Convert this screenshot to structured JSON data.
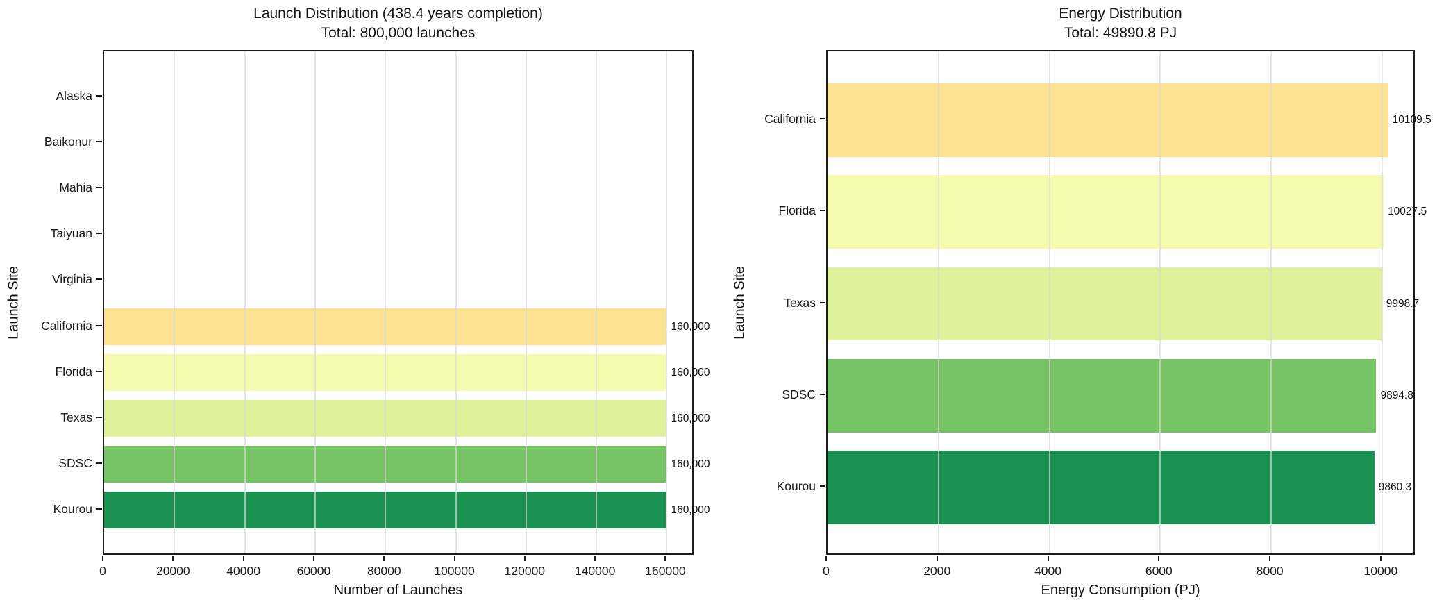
{
  "chart_data": [
    {
      "type": "bar",
      "orientation": "horizontal",
      "title_line1": "Launch Distribution (438.4 years completion)",
      "title_line2": "Total: 800,000 launches",
      "xlabel": "Number of Launches",
      "ylabel": "Launch Site",
      "categories": [
        "Alaska",
        "Baikonur",
        "Mahia",
        "Taiyuan",
        "Virginia",
        "California",
        "Florida",
        "Texas",
        "SDSC",
        "Kourou"
      ],
      "values": [
        0,
        0,
        0,
        0,
        0,
        160000,
        160000,
        160000,
        160000,
        160000
      ],
      "value_labels": [
        null,
        null,
        null,
        null,
        null,
        "160,000",
        "160,000",
        "160,000",
        "160,000",
        "160,000"
      ],
      "bar_colors": [
        null,
        null,
        null,
        null,
        null,
        "#FDE391",
        "#F5FAAF",
        "#E0F19B",
        "#77C567",
        "#1A9150"
      ],
      "xlim": [
        0,
        168000
      ],
      "xticks": [
        0,
        20000,
        40000,
        60000,
        80000,
        100000,
        120000,
        140000,
        160000
      ],
      "xtick_labels": [
        "0",
        "20000",
        "40000",
        "60000",
        "80000",
        "100000",
        "120000",
        "140000",
        "160000"
      ],
      "grid": "vertical-light-gray",
      "legend": "none"
    },
    {
      "type": "bar",
      "orientation": "horizontal",
      "title_line1": "Energy Distribution",
      "title_line2": "Total: 49890.8 PJ",
      "xlabel": "Energy Consumption (PJ)",
      "ylabel": "Launch Site",
      "categories": [
        "California",
        "Florida",
        "Texas",
        "SDSC",
        "Kourou"
      ],
      "values": [
        10109.5,
        10027.5,
        9998.7,
        9894.8,
        9860.3
      ],
      "value_labels": [
        "10109.5",
        "10027.5",
        "9998.7",
        "9894.8",
        "9860.3"
      ],
      "bar_colors": [
        "#FDE391",
        "#F5FAAF",
        "#E0F19B",
        "#77C567",
        "#1A9150"
      ],
      "xlim": [
        0,
        10615
      ],
      "xticks": [
        0,
        2000,
        4000,
        6000,
        8000,
        10000
      ],
      "xtick_labels": [
        "0",
        "2000",
        "4000",
        "6000",
        "8000",
        "10000"
      ],
      "grid": "vertical-light-gray",
      "legend": "none"
    }
  ]
}
